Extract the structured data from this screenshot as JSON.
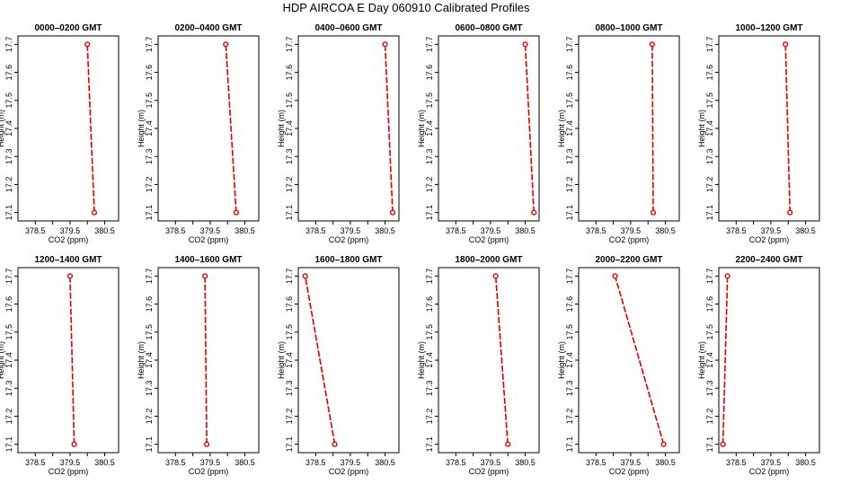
{
  "page": {
    "title": "HDP  AIRCOA E  Day 060910  Calibrated Profiles"
  },
  "style": {
    "series_color": "#dd0000",
    "axis_color": "#000000",
    "background": "#ffffff"
  },
  "chart_data": [
    {
      "type": "line",
      "title": "0000–0200 GMT",
      "xlabel": "CO2 (ppm)",
      "ylabel": "Height (m)",
      "xlim": [
        378.0,
        380.9
      ],
      "ylim": [
        17.07,
        17.73
      ],
      "xticks": [
        "378.5",
        "379.0",
        "379.5",
        "380.0",
        "380.5"
      ],
      "yticks": [
        "17.1",
        "17.2",
        "17.3",
        "17.4",
        "17.5",
        "17.6",
        "17.7"
      ],
      "grid": false,
      "series": [
        {
          "x": [
            380.2,
            380.0
          ],
          "y": [
            17.1,
            17.7
          ]
        }
      ]
    },
    {
      "type": "line",
      "title": "0200–0400 GMT",
      "xlabel": "CO2 (ppm)",
      "ylabel": "Height (m)",
      "xlim": [
        378.0,
        380.9
      ],
      "ylim": [
        17.07,
        17.73
      ],
      "xticks": [
        "378.5",
        "379.0",
        "379.5",
        "380.0",
        "380.5"
      ],
      "yticks": [
        "17.1",
        "17.2",
        "17.3",
        "17.4",
        "17.5",
        "17.6",
        "17.7"
      ],
      "grid": false,
      "series": [
        {
          "x": [
            380.25,
            379.95
          ],
          "y": [
            17.1,
            17.7
          ]
        }
      ]
    },
    {
      "type": "line",
      "title": "0400–0600 GMT",
      "xlabel": "CO2 (ppm)",
      "ylabel": "Height (m)",
      "xlim": [
        378.0,
        380.9
      ],
      "ylim": [
        17.07,
        17.73
      ],
      "xticks": [
        "378.5",
        "379.0",
        "379.5",
        "380.0",
        "380.5"
      ],
      "yticks": [
        "17.1",
        "17.2",
        "17.3",
        "17.4",
        "17.5",
        "17.6",
        "17.7"
      ],
      "grid": false,
      "series": [
        {
          "x": [
            380.72,
            380.5
          ],
          "y": [
            17.1,
            17.7
          ]
        }
      ]
    },
    {
      "type": "line",
      "title": "0600–0800 GMT",
      "xlabel": "CO2 (ppm)",
      "ylabel": "Height (m)",
      "xlim": [
        378.0,
        380.9
      ],
      "ylim": [
        17.07,
        17.73
      ],
      "xticks": [
        "378.5",
        "379.0",
        "379.5",
        "380.0",
        "380.5"
      ],
      "yticks": [
        "17.1",
        "17.2",
        "17.3",
        "17.4",
        "17.5",
        "17.6",
        "17.7"
      ],
      "grid": false,
      "series": [
        {
          "x": [
            380.75,
            380.5
          ],
          "y": [
            17.1,
            17.7
          ]
        }
      ]
    },
    {
      "type": "line",
      "title": "0800–1000 GMT",
      "xlabel": "CO2 (ppm)",
      "ylabel": "Height (m)",
      "xlim": [
        378.0,
        380.9
      ],
      "ylim": [
        17.07,
        17.73
      ],
      "xticks": [
        "378.5",
        "379.0",
        "379.5",
        "380.0",
        "380.5"
      ],
      "yticks": [
        "17.1",
        "17.2",
        "17.3",
        "17.4",
        "17.5",
        "17.6",
        "17.7"
      ],
      "grid": false,
      "series": [
        {
          "x": [
            380.15,
            380.12
          ],
          "y": [
            17.1,
            17.7
          ]
        }
      ]
    },
    {
      "type": "line",
      "title": "1000–1200 GMT",
      "xlabel": "CO2 (ppm)",
      "ylabel": "Height (m)",
      "xlim": [
        378.0,
        380.9
      ],
      "ylim": [
        17.07,
        17.73
      ],
      "xticks": [
        "378.5",
        "379.0",
        "379.5",
        "380.0",
        "380.5"
      ],
      "yticks": [
        "17.1",
        "17.2",
        "17.3",
        "17.4",
        "17.5",
        "17.6",
        "17.7"
      ],
      "grid": false,
      "series": [
        {
          "x": [
            380.05,
            379.92
          ],
          "y": [
            17.1,
            17.7
          ]
        }
      ]
    },
    {
      "type": "line",
      "title": "1200–1400 GMT",
      "xlabel": "CO2 (ppm)",
      "ylabel": "Height (m)",
      "xlim": [
        378.0,
        380.9
      ],
      "ylim": [
        17.07,
        17.73
      ],
      "xticks": [
        "378.5",
        "379.0",
        "379.5",
        "380.0",
        "380.5"
      ],
      "yticks": [
        "17.1",
        "17.2",
        "17.3",
        "17.4",
        "17.5",
        "17.6",
        "17.7"
      ],
      "grid": false,
      "series": [
        {
          "x": [
            379.62,
            379.5
          ],
          "y": [
            17.1,
            17.7
          ]
        }
      ]
    },
    {
      "type": "line",
      "title": "1400–1600 GMT",
      "xlabel": "CO2 (ppm)",
      "ylabel": "Height (m)",
      "xlim": [
        378.0,
        380.9
      ],
      "ylim": [
        17.07,
        17.73
      ],
      "xticks": [
        "378.5",
        "379.0",
        "379.5",
        "380.0",
        "380.5"
      ],
      "yticks": [
        "17.1",
        "17.2",
        "17.3",
        "17.4",
        "17.5",
        "17.6",
        "17.7"
      ],
      "grid": false,
      "series": [
        {
          "x": [
            379.4,
            379.35
          ],
          "y": [
            17.1,
            17.7
          ]
        }
      ]
    },
    {
      "type": "line",
      "title": "1600–1800 GMT",
      "xlabel": "CO2 (ppm)",
      "ylabel": "Height (m)",
      "xlim": [
        378.0,
        380.9
      ],
      "ylim": [
        17.07,
        17.73
      ],
      "xticks": [
        "378.5",
        "379.0",
        "379.5",
        "380.0",
        "380.5"
      ],
      "yticks": [
        "17.1",
        "17.2",
        "17.3",
        "17.4",
        "17.5",
        "17.6",
        "17.7"
      ],
      "grid": false,
      "series": [
        {
          "x": [
            379.05,
            378.2
          ],
          "y": [
            17.1,
            17.7
          ]
        }
      ]
    },
    {
      "type": "line",
      "title": "1800–2000 GMT",
      "xlabel": "CO2 (ppm)",
      "ylabel": "Height (m)",
      "xlim": [
        378.0,
        380.9
      ],
      "ylim": [
        17.07,
        17.73
      ],
      "xticks": [
        "378.5",
        "379.0",
        "379.5",
        "380.0",
        "380.5"
      ],
      "yticks": [
        "17.1",
        "17.2",
        "17.3",
        "17.4",
        "17.5",
        "17.6",
        "17.7"
      ],
      "grid": false,
      "series": [
        {
          "x": [
            380.0,
            379.65
          ],
          "y": [
            17.1,
            17.7
          ]
        }
      ]
    },
    {
      "type": "line",
      "title": "2000–2200 GMT",
      "xlabel": "CO2 (ppm)",
      "ylabel": "Height (m)",
      "xlim": [
        378.0,
        380.9
      ],
      "ylim": [
        17.07,
        17.73
      ],
      "xticks": [
        "378.5",
        "379.0",
        "379.5",
        "380.0",
        "380.5"
      ],
      "yticks": [
        "17.1",
        "17.2",
        "17.3",
        "17.4",
        "17.5",
        "17.6",
        "17.7"
      ],
      "grid": false,
      "series": [
        {
          "x": [
            380.45,
            379.05
          ],
          "y": [
            17.1,
            17.7
          ]
        }
      ]
    },
    {
      "type": "line",
      "title": "2200–2400 GMT",
      "xlabel": "CO2 (ppm)",
      "ylabel": "Height (m)",
      "xlim": [
        378.0,
        380.9
      ],
      "ylim": [
        17.07,
        17.73
      ],
      "xticks": [
        "378.5",
        "379.0",
        "379.5",
        "380.0",
        "380.5"
      ],
      "yticks": [
        "17.1",
        "17.2",
        "17.3",
        "17.4",
        "17.5",
        "17.6",
        "17.7"
      ],
      "grid": false,
      "series": [
        {
          "x": [
            378.12,
            378.25
          ],
          "y": [
            17.1,
            17.7
          ]
        }
      ]
    }
  ]
}
